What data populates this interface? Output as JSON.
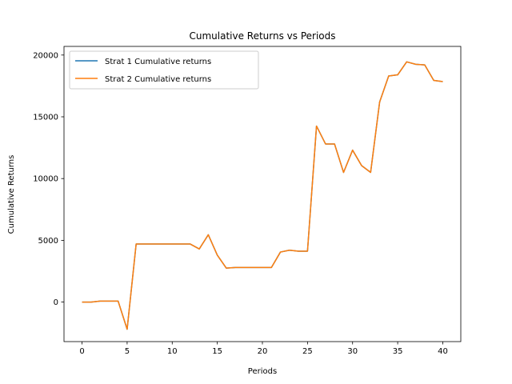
{
  "chart_data": {
    "type": "line",
    "title": "Cumulative Returns vs Periods",
    "xlabel": "Periods",
    "ylabel": "Cumulative Returns",
    "xlim": [
      -2,
      42
    ],
    "ylim": [
      -3200,
      20700
    ],
    "xticks": [
      0,
      5,
      10,
      15,
      20,
      25,
      30,
      35,
      40
    ],
    "yticks": [
      0,
      5000,
      10000,
      15000,
      20000
    ],
    "grid": false,
    "legend_position": "top-left",
    "x": [
      0,
      1,
      2,
      3,
      4,
      5,
      6,
      7,
      8,
      9,
      10,
      11,
      12,
      13,
      14,
      15,
      16,
      17,
      18,
      19,
      20,
      21,
      22,
      23,
      24,
      25,
      26,
      27,
      28,
      29,
      30,
      31,
      32,
      33,
      34,
      35,
      36,
      37,
      38,
      39,
      40
    ],
    "series": [
      {
        "name": "Strat 1 Cumulative returns",
        "color": "#1f77b4",
        "values": [
          0,
          0,
          80,
          80,
          80,
          -2200,
          4700,
          4700,
          4700,
          4700,
          4700,
          4700,
          4700,
          4300,
          5450,
          3800,
          2750,
          2800,
          2800,
          2800,
          2800,
          2800,
          4050,
          4200,
          4120,
          4120,
          14250,
          12800,
          12800,
          10500,
          12300,
          11050,
          10500,
          16200,
          18300,
          18400,
          19450,
          19250,
          19200,
          17950,
          17850
        ]
      },
      {
        "name": "Strat 2 Cumulative returns",
        "color": "#ff7f0e",
        "values": [
          0,
          0,
          80,
          80,
          80,
          -2200,
          4700,
          4700,
          4700,
          4700,
          4700,
          4700,
          4700,
          4300,
          5450,
          3800,
          2750,
          2800,
          2800,
          2800,
          2800,
          2800,
          4050,
          4200,
          4120,
          4120,
          14250,
          12800,
          12800,
          10500,
          12300,
          11050,
          10500,
          16200,
          18300,
          18400,
          19450,
          19250,
          19200,
          17950,
          17850
        ]
      }
    ]
  }
}
